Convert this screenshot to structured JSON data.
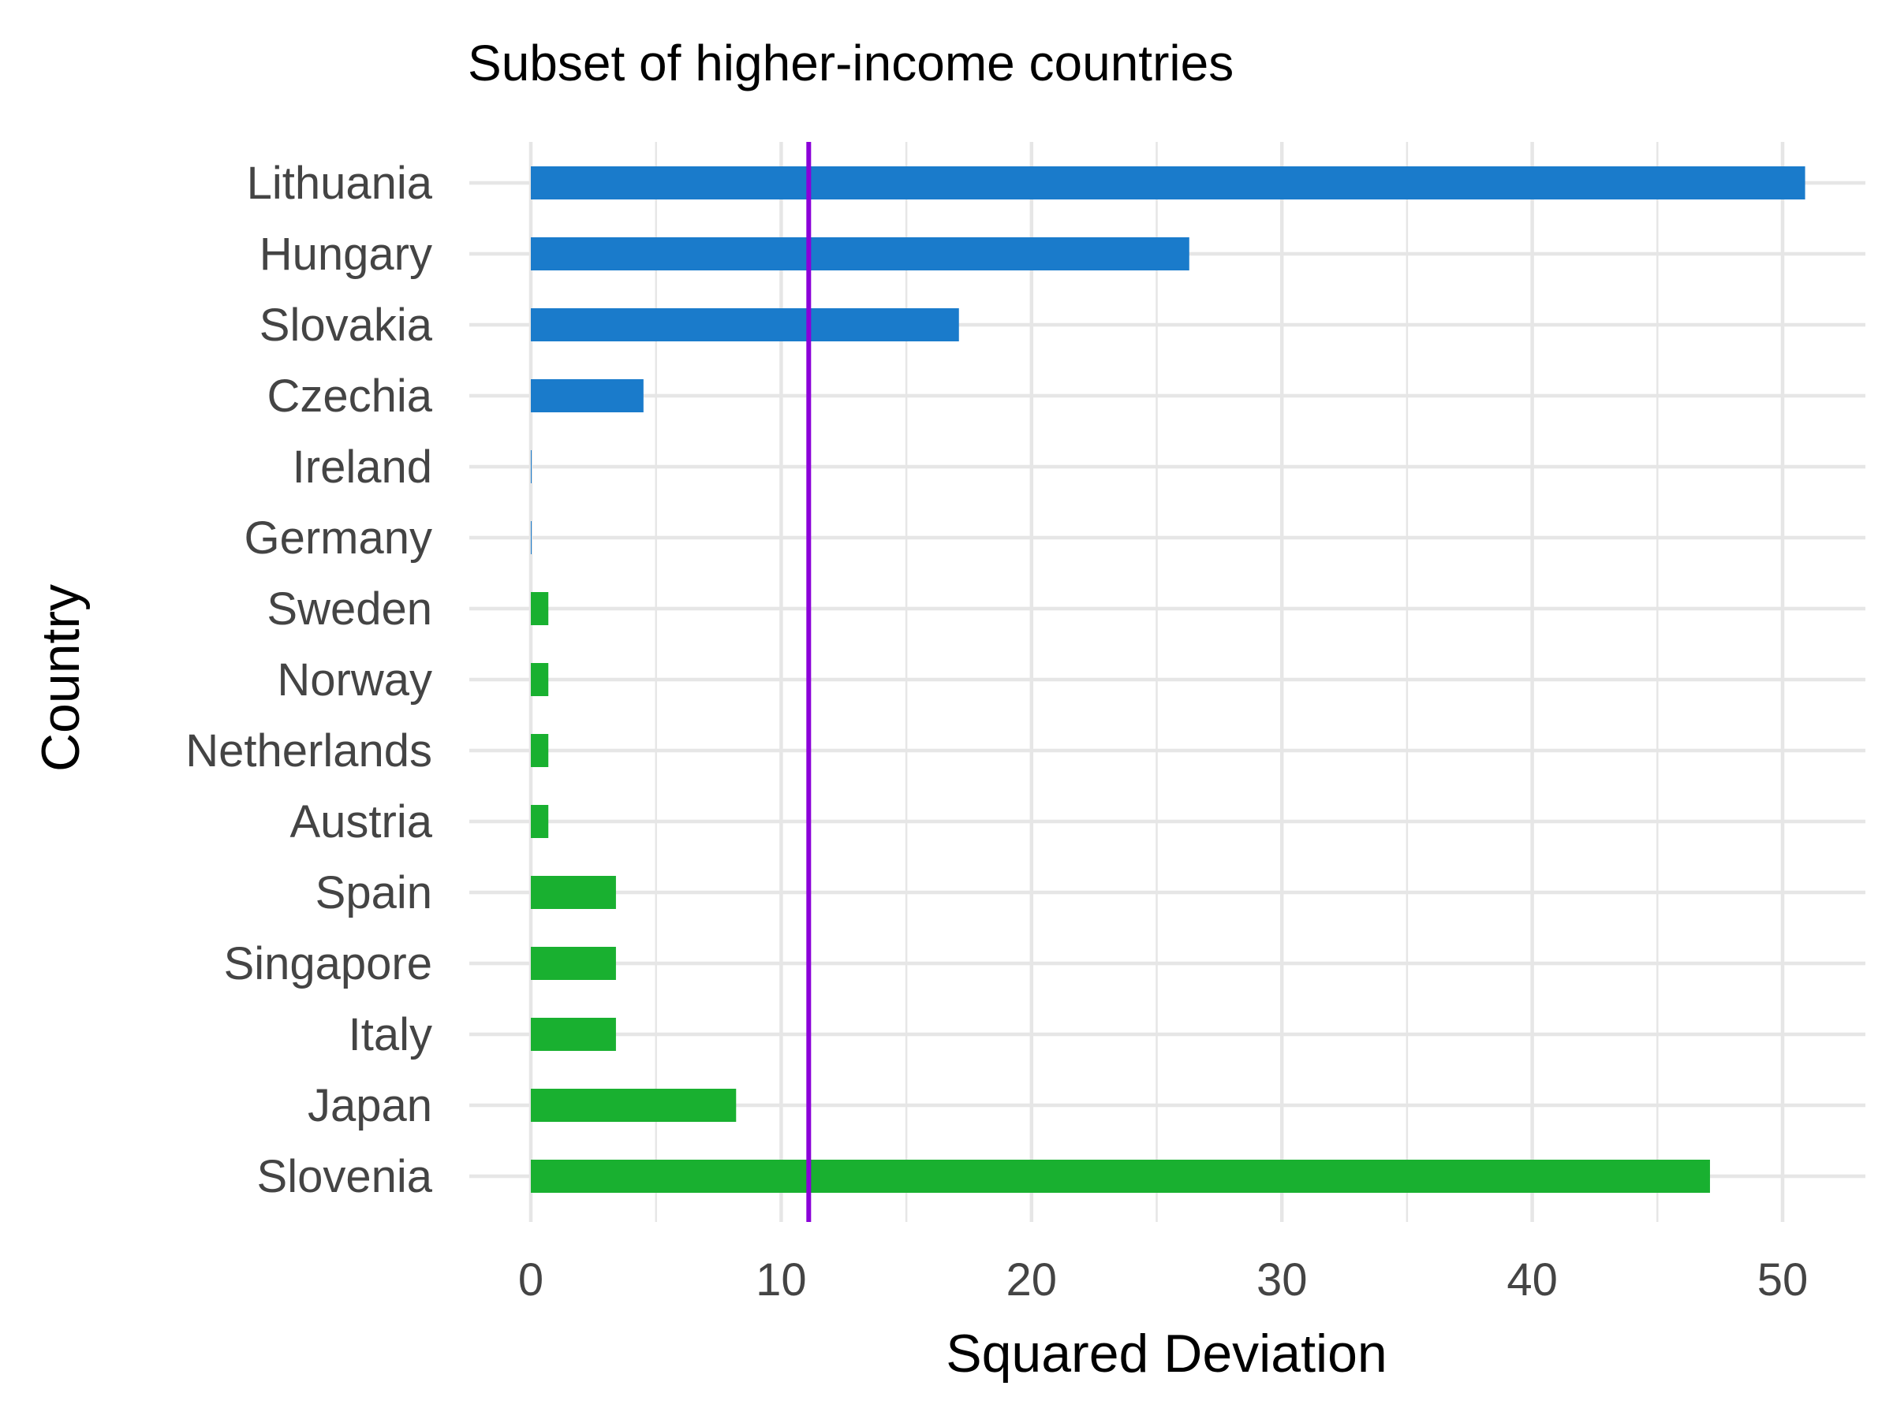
{
  "chart_data": {
    "type": "bar",
    "orientation": "horizontal",
    "title": "Subset of higher-income countries",
    "xlabel": "Squared Deviation",
    "ylabel": "Country",
    "xlim": [
      0,
      53
    ],
    "xticks": [
      0,
      10,
      20,
      30,
      40,
      50
    ],
    "grid": true,
    "legend": "none",
    "reference_line": {
      "x": 11.1,
      "color": "#8B00D9"
    },
    "colors": {
      "above": "#1A7BCB",
      "below": "#19B030",
      "grid": "#E6E6E6"
    },
    "categories": [
      "Lithuania",
      "Hungary",
      "Slovakia",
      "Czechia",
      "Ireland",
      "Germany",
      "Sweden",
      "Norway",
      "Netherlands",
      "Austria",
      "Spain",
      "Singapore",
      "Italy",
      "Japan",
      "Slovenia"
    ],
    "values": [
      50.9,
      26.3,
      17.1,
      4.5,
      0.02,
      0.02,
      0.7,
      0.7,
      0.7,
      0.7,
      3.4,
      3.4,
      3.4,
      8.2,
      47.1
    ],
    "groups": [
      "above",
      "above",
      "above",
      "above",
      "above",
      "above",
      "below",
      "below",
      "below",
      "below",
      "below",
      "below",
      "below",
      "below",
      "below"
    ]
  }
}
